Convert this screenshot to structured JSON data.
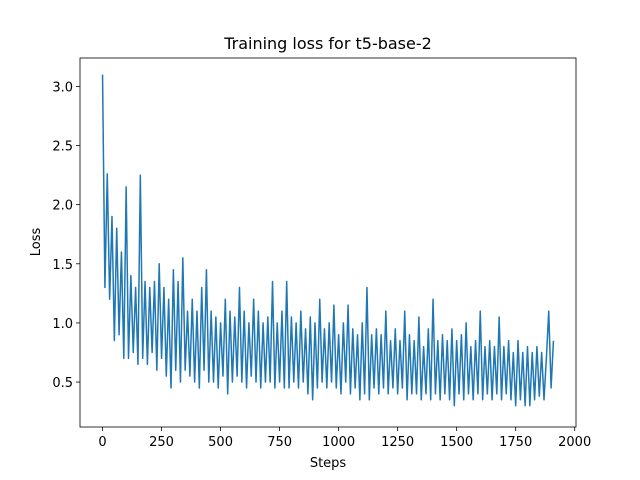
{
  "chart_data": {
    "type": "line",
    "title": "Training loss for t5-base-2",
    "xlabel": "Steps",
    "ylabel": "Loss",
    "x": [
      0,
      10,
      20,
      30,
      40,
      50,
      60,
      70,
      80,
      90,
      100,
      110,
      120,
      130,
      140,
      150,
      160,
      170,
      180,
      190,
      200,
      210,
      220,
      230,
      240,
      250,
      260,
      270,
      280,
      290,
      300,
      310,
      320,
      330,
      340,
      350,
      360,
      370,
      380,
      390,
      400,
      410,
      420,
      430,
      440,
      450,
      460,
      470,
      480,
      490,
      500,
      510,
      520,
      530,
      540,
      550,
      560,
      570,
      580,
      590,
      600,
      610,
      620,
      630,
      640,
      650,
      660,
      670,
      680,
      690,
      700,
      710,
      720,
      730,
      740,
      750,
      760,
      770,
      780,
      790,
      800,
      810,
      820,
      830,
      840,
      850,
      860,
      870,
      880,
      890,
      900,
      910,
      920,
      930,
      940,
      950,
      960,
      970,
      980,
      990,
      1000,
      1010,
      1020,
      1030,
      1040,
      1050,
      1060,
      1070,
      1080,
      1090,
      1100,
      1110,
      1120,
      1130,
      1140,
      1150,
      1160,
      1170,
      1180,
      1190,
      1200,
      1210,
      1220,
      1230,
      1240,
      1250,
      1260,
      1270,
      1280,
      1290,
      1300,
      1310,
      1320,
      1330,
      1340,
      1350,
      1360,
      1370,
      1380,
      1390,
      1400,
      1410,
      1420,
      1430,
      1440,
      1450,
      1460,
      1470,
      1480,
      1490,
      1500,
      1510,
      1520,
      1530,
      1540,
      1550,
      1560,
      1570,
      1580,
      1590,
      1600,
      1610,
      1620,
      1630,
      1640,
      1650,
      1660,
      1670,
      1680,
      1690,
      1700,
      1710,
      1720,
      1730,
      1740,
      1750,
      1760,
      1770,
      1780,
      1790,
      1800,
      1810,
      1820,
      1830,
      1840,
      1850,
      1860,
      1870,
      1880,
      1890,
      1900,
      1910
    ],
    "series": [
      {
        "name": "Loss",
        "color": "#1f77b4",
        "values": [
          3.1,
          1.3,
          2.26,
          1.2,
          1.9,
          0.85,
          1.8,
          0.9,
          1.6,
          0.7,
          2.15,
          0.7,
          1.4,
          0.75,
          1.3,
          0.65,
          2.25,
          0.7,
          1.35,
          0.65,
          1.3,
          0.75,
          1.35,
          0.6,
          1.5,
          0.7,
          1.3,
          0.55,
          1.2,
          0.45,
          1.45,
          0.6,
          1.35,
          0.5,
          1.55,
          0.6,
          1.1,
          0.55,
          1.2,
          0.5,
          1.1,
          0.45,
          1.3,
          0.6,
          1.45,
          0.5,
          1.1,
          0.5,
          1.05,
          0.45,
          1.0,
          0.55,
          1.2,
          0.4,
          1.1,
          0.5,
          1.05,
          0.55,
          1.3,
          0.5,
          1.1,
          0.45,
          1.0,
          0.55,
          1.2,
          0.5,
          1.1,
          0.45,
          1.0,
          0.5,
          1.05,
          0.5,
          1.35,
          0.45,
          1.0,
          0.5,
          1.1,
          0.45,
          1.35,
          0.45,
          1.05,
          0.5,
          1.0,
          0.45,
          1.1,
          0.5,
          0.95,
          0.4,
          1.05,
          0.35,
          1.0,
          0.45,
          1.2,
          0.5,
          0.95,
          0.45,
          1.0,
          0.5,
          1.15,
          0.45,
          0.9,
          0.4,
          1.0,
          0.5,
          1.15,
          0.4,
          0.95,
          0.45,
          0.9,
          0.35,
          1.0,
          0.4,
          1.3,
          0.35,
          0.9,
          0.45,
          0.95,
          0.4,
          0.9,
          0.45,
          1.1,
          0.4,
          0.85,
          0.45,
          0.95,
          0.4,
          0.85,
          0.45,
          1.1,
          0.35,
          0.9,
          0.4,
          0.85,
          0.4,
          1.05,
          0.35,
          0.8,
          0.4,
          0.95,
          0.35,
          1.2,
          0.4,
          0.85,
          0.35,
          0.9,
          0.4,
          0.85,
          0.35,
          0.95,
          0.3,
          0.85,
          0.4,
          0.9,
          0.35,
          1.0,
          0.4,
          0.8,
          0.35,
          0.85,
          0.4,
          1.1,
          0.35,
          0.8,
          0.4,
          0.85,
          0.35,
          0.8,
          0.4,
          1.05,
          0.35,
          0.8,
          0.4,
          0.85,
          0.35,
          0.75,
          0.3,
          0.85,
          0.35,
          0.75,
          0.3,
          0.8,
          0.3,
          0.75,
          0.35,
          0.8,
          0.38,
          0.75,
          0.35,
          0.7,
          1.1,
          0.45,
          0.85
        ]
      }
    ],
    "xlim": [
      -95.5,
      2005.5
    ],
    "xticks": [
      0,
      250,
      500,
      750,
      1000,
      1250,
      1500,
      1750,
      2000
    ],
    "ylim": [
      0.12,
      3.24
    ],
    "yticks": [
      {
        "value": 0.5,
        "label": "0.5"
      },
      {
        "value": 1,
        "label": "1.0"
      },
      {
        "value": 1.5,
        "label": "1.5"
      },
      {
        "value": 2,
        "label": "2.0"
      },
      {
        "value": 2.5,
        "label": "2.5"
      },
      {
        "value": 3,
        "label": "3.0"
      }
    ],
    "grid": false
  }
}
